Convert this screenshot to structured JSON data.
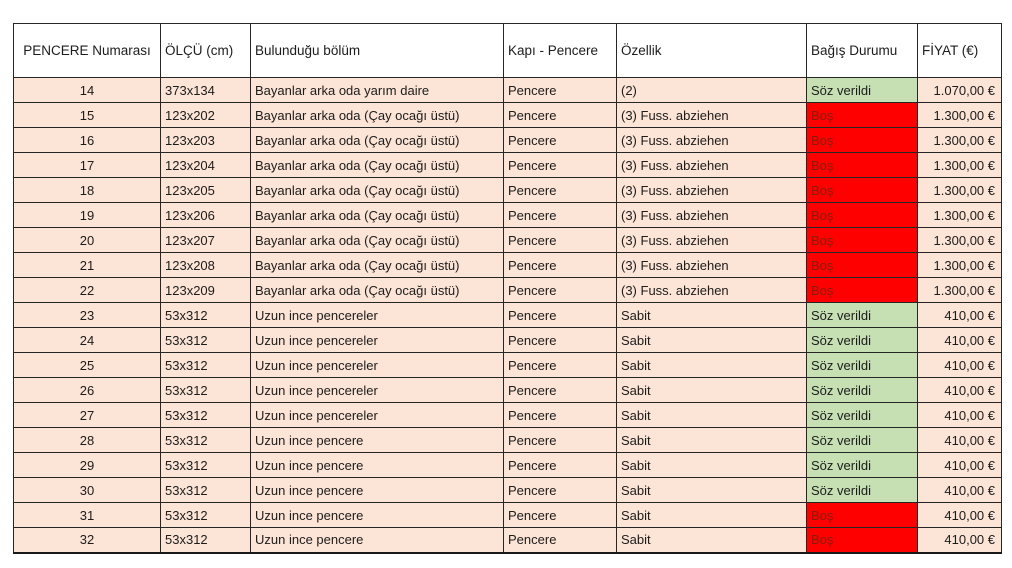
{
  "table": {
    "title": "window-donation-list",
    "columns": [
      {
        "label": "PENCERE Numarası"
      },
      {
        "label": "ÖLÇÜ (cm)"
      },
      {
        "label": "Bulunduğu bölüm"
      },
      {
        "label": "Kapı - Pencere"
      },
      {
        "label": "Özellik"
      },
      {
        "label": "Bağış Durumu"
      },
      {
        "label": "FİYAT (€)"
      }
    ],
    "rows": [
      {
        "no": "14",
        "size": "373x134",
        "section": "Bayanlar arka oda yarım daire",
        "type": "Pencere",
        "feature": "(2)",
        "status": "Söz verildi",
        "status_state": "promised",
        "price": "1.070,00 €"
      },
      {
        "no": "15",
        "size": "123x202",
        "section": "Bayanlar arka oda (Çay ocağı üstü)",
        "type": "Pencere",
        "feature": "(3) Fuss. abziehen",
        "status": "Boş",
        "status_state": "empty",
        "price": "1.300,00 €"
      },
      {
        "no": "16",
        "size": "123x203",
        "section": "Bayanlar arka oda (Çay ocağı üstü)",
        "type": "Pencere",
        "feature": "(3) Fuss. abziehen",
        "status": "Boş",
        "status_state": "empty",
        "price": "1.300,00 €"
      },
      {
        "no": "17",
        "size": "123x204",
        "section": "Bayanlar arka oda (Çay ocağı üstü)",
        "type": "Pencere",
        "feature": "(3) Fuss. abziehen",
        "status": "Boş",
        "status_state": "empty",
        "price": "1.300,00 €"
      },
      {
        "no": "18",
        "size": "123x205",
        "section": "Bayanlar arka oda (Çay ocağı üstü)",
        "type": "Pencere",
        "feature": "(3) Fuss. abziehen",
        "status": "Boş",
        "status_state": "empty",
        "price": "1.300,00 €"
      },
      {
        "no": "19",
        "size": "123x206",
        "section": "Bayanlar arka oda (Çay ocağı üstü)",
        "type": "Pencere",
        "feature": "(3) Fuss. abziehen",
        "status": "Boş",
        "status_state": "empty",
        "price": "1.300,00 €"
      },
      {
        "no": "20",
        "size": "123x207",
        "section": "Bayanlar arka oda (Çay ocağı üstü)",
        "type": "Pencere",
        "feature": "(3) Fuss. abziehen",
        "status": "Boş",
        "status_state": "empty",
        "price": "1.300,00 €"
      },
      {
        "no": "21",
        "size": "123x208",
        "section": "Bayanlar arka oda (Çay ocağı üstü)",
        "type": "Pencere",
        "feature": "(3) Fuss. abziehen",
        "status": "Boş",
        "status_state": "empty",
        "price": "1.300,00 €"
      },
      {
        "no": "22",
        "size": "123x209",
        "section": "Bayanlar arka oda (Çay ocağı üstü)",
        "type": "Pencere",
        "feature": "(3) Fuss. abziehen",
        "status": "Boş",
        "status_state": "empty",
        "price": "1.300,00 €"
      },
      {
        "no": "23",
        "size": "53x312",
        "section": "Uzun ince pencereler",
        "type": "Pencere",
        "feature": "Sabit",
        "status": "Söz verildi",
        "status_state": "promised",
        "price": "410,00 €"
      },
      {
        "no": "24",
        "size": "53x312",
        "section": "Uzun ince pencereler",
        "type": "Pencere",
        "feature": "Sabit",
        "status": "Söz verildi",
        "status_state": "promised",
        "price": "410,00 €"
      },
      {
        "no": "25",
        "size": "53x312",
        "section": "Uzun ince pencereler",
        "type": "Pencere",
        "feature": "Sabit",
        "status": "Söz verildi",
        "status_state": "promised",
        "price": "410,00 €"
      },
      {
        "no": "26",
        "size": "53x312",
        "section": "Uzun ince pencereler",
        "type": "Pencere",
        "feature": "Sabit",
        "status": "Söz verildi",
        "status_state": "promised",
        "price": "410,00 €"
      },
      {
        "no": "27",
        "size": "53x312",
        "section": "Uzun ince pencereler",
        "type": "Pencere",
        "feature": "Sabit",
        "status": "Söz verildi",
        "status_state": "promised",
        "price": "410,00 €"
      },
      {
        "no": "28",
        "size": "53x312",
        "section": "Uzun ince pencere",
        "type": "Pencere",
        "feature": "Sabit",
        "status": "Söz verildi",
        "status_state": "promised",
        "price": "410,00 €"
      },
      {
        "no": "29",
        "size": "53x312",
        "section": "Uzun ince pencere",
        "type": "Pencere",
        "feature": "Sabit",
        "status": "Söz verildi",
        "status_state": "promised",
        "price": "410,00 €"
      },
      {
        "no": "30",
        "size": "53x312",
        "section": "Uzun ince pencere",
        "type": "Pencere",
        "feature": "Sabit",
        "status": "Söz verildi",
        "status_state": "promised",
        "price": "410,00 €"
      },
      {
        "no": "31",
        "size": "53x312",
        "section": "Uzun ince pencere",
        "type": "Pencere",
        "feature": "Sabit",
        "status": "Boş",
        "status_state": "empty",
        "price": "410,00 €"
      },
      {
        "no": "32",
        "size": "53x312",
        "section": "Uzun ince pencere",
        "type": "Pencere",
        "feature": "Sabit",
        "status": "Boş",
        "status_state": "empty",
        "price": "410,00 €"
      }
    ]
  },
  "colors": {
    "row_background": "#fce4d6",
    "promised_background": "#c6e0b4",
    "empty_background": "#ff0000",
    "empty_text": "#8a1a0e",
    "border": "#262626"
  }
}
